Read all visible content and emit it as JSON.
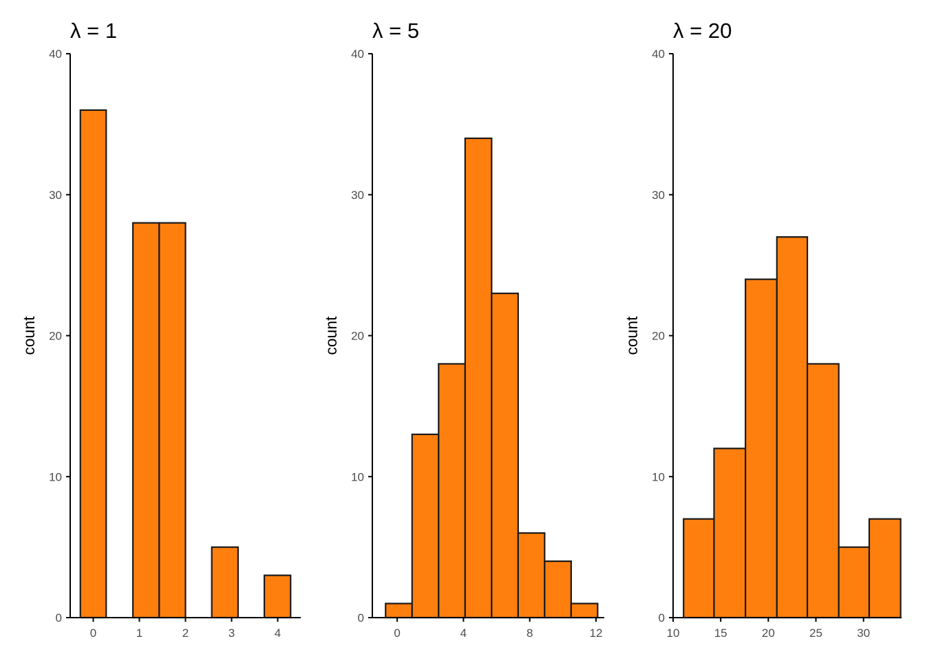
{
  "colors": {
    "bar_fill": "#FF7F0E",
    "bar_outline": "#1A1A1A",
    "axis": "#000000",
    "tick_text": "#4D4D4D"
  },
  "chart_data": [
    {
      "type": "bar",
      "title": "λ = 1",
      "xlabel": "",
      "ylabel": "count",
      "xlim": [
        -0.5,
        4.5
      ],
      "ylim": [
        0,
        40
      ],
      "x_ticks": [
        0,
        1,
        2,
        3,
        4
      ],
      "y_ticks": [
        0,
        10,
        20,
        30,
        40
      ],
      "grid": false,
      "bins": [
        {
          "x0": -0.28,
          "x1": 0.28,
          "count": 36
        },
        {
          "x0": 0.86,
          "x1": 1.43,
          "count": 28
        },
        {
          "x0": 1.43,
          "x1": 2.0,
          "count": 28
        },
        {
          "x0": 2.57,
          "x1": 3.14,
          "count": 5
        },
        {
          "x0": 3.71,
          "x1": 4.28,
          "count": 3
        }
      ]
    },
    {
      "type": "bar",
      "title": "λ = 5",
      "xlabel": "",
      "ylabel": "count",
      "xlim": [
        -1.5,
        12.5
      ],
      "ylim": [
        0,
        40
      ],
      "x_ticks": [
        0,
        4,
        8,
        12
      ],
      "y_ticks": [
        0,
        10,
        20,
        30,
        40
      ],
      "grid": false,
      "bins": [
        {
          "x0": -0.7,
          "x1": 0.9,
          "count": 1
        },
        {
          "x0": 0.9,
          "x1": 2.5,
          "count": 13
        },
        {
          "x0": 2.5,
          "x1": 4.1,
          "count": 18
        },
        {
          "x0": 4.1,
          "x1": 5.7,
          "count": 34
        },
        {
          "x0": 5.7,
          "x1": 7.3,
          "count": 23
        },
        {
          "x0": 7.3,
          "x1": 8.9,
          "count": 6
        },
        {
          "x0": 8.9,
          "x1": 10.5,
          "count": 4
        },
        {
          "x0": 10.5,
          "x1": 12.1,
          "count": 1
        }
      ]
    },
    {
      "type": "bar",
      "title": "λ = 20",
      "xlabel": "",
      "ylabel": "count",
      "xlim": [
        10,
        34
      ],
      "ylim": [
        0,
        40
      ],
      "x_ticks": [
        10,
        15,
        20,
        25,
        30
      ],
      "y_ticks": [
        0,
        10,
        20,
        30,
        40
      ],
      "grid": false,
      "bins": [
        {
          "x0": 11.1,
          "x1": 14.3,
          "count": 7
        },
        {
          "x0": 14.3,
          "x1": 17.6,
          "count": 12
        },
        {
          "x0": 17.6,
          "x1": 20.9,
          "count": 24
        },
        {
          "x0": 20.9,
          "x1": 24.1,
          "count": 27
        },
        {
          "x0": 24.1,
          "x1": 27.4,
          "count": 18
        },
        {
          "x0": 27.4,
          "x1": 30.6,
          "count": 5
        },
        {
          "x0": 30.6,
          "x1": 33.9,
          "count": 7
        }
      ]
    }
  ]
}
